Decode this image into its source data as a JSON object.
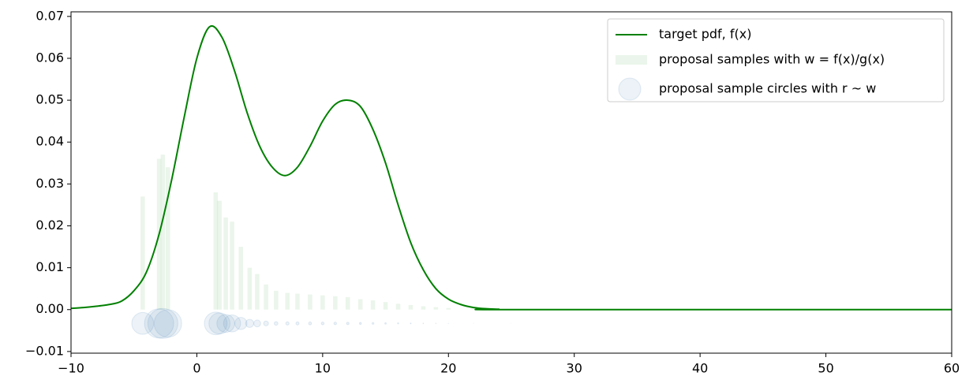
{
  "chart_data": {
    "type": "line",
    "xlim": [
      -10,
      60
    ],
    "ylim": [
      -0.0104,
      0.0711
    ],
    "xticks": [
      {
        "value": -10,
        "label": "−10"
      },
      0,
      10,
      20,
      30,
      40,
      50,
      60
    ],
    "yticks": [
      {
        "value": -0.01,
        "label": "−0.01"
      },
      {
        "value": 0,
        "label": "0.00"
      },
      0.01,
      0.02,
      0.03,
      0.04,
      0.05,
      0.06,
      0.07
    ],
    "legend": "upper right",
    "series": [
      {
        "name": "target pdf, f(x)",
        "type": "line",
        "color": "#008000",
        "x": [
          -10,
          -9,
          -8,
          -7,
          -6,
          -5,
          -4,
          -3,
          -2,
          -1,
          0,
          1,
          2,
          3,
          4,
          5,
          6,
          7,
          8,
          9,
          10,
          11,
          12,
          13,
          14,
          15,
          16,
          17,
          18,
          19,
          20,
          21,
          22,
          23,
          24,
          25,
          60
        ],
        "values": [
          0.0003,
          0.0005,
          0.0008,
          0.0012,
          0.002,
          0.0045,
          0.009,
          0.018,
          0.031,
          0.046,
          0.06,
          0.0675,
          0.065,
          0.057,
          0.047,
          0.039,
          0.034,
          0.032,
          0.034,
          0.039,
          0.045,
          0.049,
          0.05,
          0.0485,
          0.043,
          0.035,
          0.025,
          0.016,
          0.0095,
          0.005,
          0.0025,
          0.0012,
          0.0005,
          0.0002,
          0.0001,
          0,
          0
        ]
      },
      {
        "name": "proposal samples with w = f(x)/g(x)",
        "type": "bar",
        "color": "#008000",
        "x": [
          -4.3,
          -3,
          -2.7,
          -2.3,
          1.5,
          1.8,
          2.3,
          2.8,
          3.5,
          4.2,
          4.8,
          5.5,
          6.3,
          7.2,
          8,
          9,
          10,
          11,
          12,
          13,
          14,
          15,
          16,
          17,
          18,
          19,
          20,
          22,
          25,
          28,
          45,
          48,
          52,
          56
        ],
        "values": [
          0.027,
          0.036,
          0.037,
          0.034,
          0.028,
          0.026,
          0.022,
          0.021,
          0.015,
          0.01,
          0.0085,
          0.006,
          0.0045,
          0.004,
          0.0038,
          0.0036,
          0.0034,
          0.0032,
          0.003,
          0.0025,
          0.0022,
          0.0018,
          0.0014,
          0.0011,
          0.0008,
          0.0006,
          0.0004,
          0.0002,
          0.0001,
          5e-05,
          2e-05,
          2e-05,
          1e-05,
          1e-05
        ]
      },
      {
        "name": "proposal sample circles with r ~ w",
        "type": "scatter",
        "color": "#4682b4",
        "x": [
          -4.3,
          -3,
          -2.7,
          -2.3,
          1.5,
          1.8,
          2.3,
          2.8,
          3.5,
          4.2,
          4.8,
          5.5,
          6.3,
          7.2,
          8,
          9,
          10,
          11,
          12,
          13,
          14,
          15,
          16,
          17,
          18,
          19,
          20,
          22,
          25,
          28,
          45,
          48,
          52,
          56
        ],
        "values": [
          -0.0033,
          -0.0033,
          -0.0033,
          -0.0033,
          -0.0033,
          -0.0033,
          -0.0033,
          -0.0033,
          -0.0033,
          -0.0033,
          -0.0033,
          -0.0033,
          -0.0033,
          -0.0033,
          -0.0033,
          -0.0033,
          -0.0033,
          -0.0033,
          -0.0033,
          -0.0033,
          -0.0033,
          -0.0033,
          -0.0033,
          -0.0033,
          -0.0033,
          -0.0033,
          -0.0033,
          -0.0033,
          -0.0033,
          -0.0033,
          -0.0033,
          -0.0033,
          -0.0033,
          -0.0033
        ],
        "sizes": [
          0.027,
          0.036,
          0.037,
          0.034,
          0.028,
          0.026,
          0.022,
          0.021,
          0.015,
          0.01,
          0.0085,
          0.006,
          0.0045,
          0.004,
          0.0038,
          0.0036,
          0.0034,
          0.0032,
          0.003,
          0.0025,
          0.0022,
          0.0018,
          0.0014,
          0.0011,
          0.0008,
          0.0006,
          0.0004,
          0.0002,
          0.0001,
          5e-05,
          2e-05,
          2e-05,
          1e-05,
          1e-05
        ]
      }
    ]
  }
}
